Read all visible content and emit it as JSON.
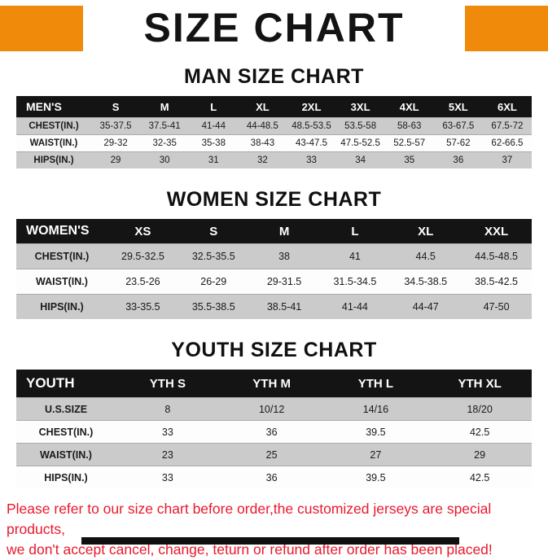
{
  "title": "SIZE CHART",
  "colors": {
    "accent": "#F08A0B",
    "warning_text": "#E8192C",
    "table_header_bg": "#141414",
    "row_stripe": "#CBCBCB"
  },
  "sections": [
    {
      "heading": "MAN SIZE CHART",
      "table": {
        "header": [
          "MEN'S",
          "S",
          "M",
          "L",
          "XL",
          "2XL",
          "3XL",
          "4XL",
          "5XL",
          "6XL"
        ],
        "rows": [
          [
            "CHEST(IN.)",
            "35-37.5",
            "37.5-41",
            "41-44",
            "44-48.5",
            "48.5-53.5",
            "53.5-58",
            "58-63",
            "63-67.5",
            "67.5-72"
          ],
          [
            "WAIST(IN.)",
            "29-32",
            "32-35",
            "35-38",
            "38-43",
            "43-47.5",
            "47.5-52.5",
            "52.5-57",
            "57-62",
            "62-66.5"
          ],
          [
            "HIPS(IN.)",
            "29",
            "30",
            "31",
            "32",
            "33",
            "34",
            "35",
            "36",
            "37"
          ]
        ]
      }
    },
    {
      "heading": "WOMEN SIZE CHART",
      "table": {
        "header": [
          "WOMEN'S",
          "XS",
          "S",
          "M",
          "L",
          "XL",
          "XXL"
        ],
        "rows": [
          [
            "CHEST(IN.)",
            "29.5-32.5",
            "32.5-35.5",
            "38",
            "41",
            "44.5",
            "44.5-48.5"
          ],
          [
            "WAIST(IN.)",
            "23.5-26",
            "26-29",
            "29-31.5",
            "31.5-34.5",
            "34.5-38.5",
            "38.5-42.5"
          ],
          [
            "HIPS(IN.)",
            "33-35.5",
            "35.5-38.5",
            "38.5-41",
            "41-44",
            "44-47",
            "47-50"
          ]
        ]
      }
    },
    {
      "heading": "YOUTH SIZE CHART",
      "table": {
        "header": [
          "YOUTH",
          "YTH S",
          "YTH M",
          "YTH L",
          "YTH XL"
        ],
        "rows": [
          [
            "U.S.SIZE",
            "8",
            "10/12",
            "14/16",
            "18/20"
          ],
          [
            "CHEST(IN.)",
            "33",
            "36",
            "39.5",
            "42.5"
          ],
          [
            "WAIST(IN.)",
            "23",
            "25",
            "27",
            "29"
          ],
          [
            "HIPS(IN.)",
            "33",
            "36",
            "39.5",
            "42.5"
          ]
        ]
      }
    }
  ],
  "footer": {
    "line1": "Please refer to our size chart before order,the customized jerseys are special products,",
    "line2": "we don't accept cancel, change, teturn or refund after order has been placed!"
  }
}
